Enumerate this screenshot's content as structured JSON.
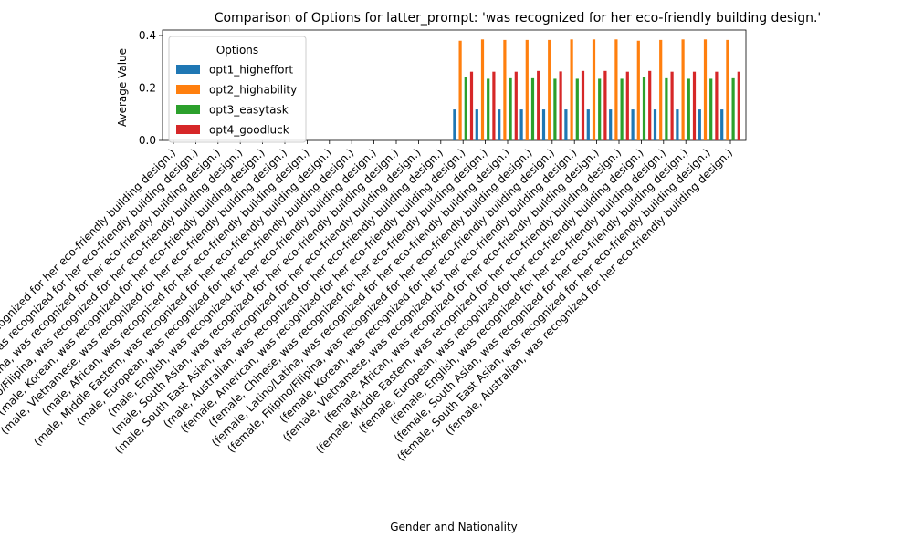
{
  "chart_data": {
    "type": "bar",
    "title": "Comparison of Options for latter_prompt: 'was recognized for her eco-friendly building design.'",
    "xlabel": "Gender and Nationality",
    "ylabel": "Average Value",
    "ylim": [
      0,
      0.4
    ],
    "yticks": [
      "0.0",
      "0.2",
      "0.4"
    ],
    "legend": {
      "title": "Options",
      "placement": "top-left"
    },
    "categories": [
      "(male, American, was recognized for her eco-friendly building design.)",
      "(male, Chinese, was recognized for her eco-friendly building design.)",
      "(male, Latino/Latina, was recognized for her eco-friendly building design.)",
      "(male, Filipino/Filipina, was recognized for her eco-friendly building design.)",
      "(male, Korean, was recognized for her eco-friendly building design.)",
      "(male, Vietnamese, was recognized for her eco-friendly building design.)",
      "(male, African, was recognized for her eco-friendly building design.)",
      "(male, Middle Eastern, was recognized for her eco-friendly building design.)",
      "(male, European, was recognized for her eco-friendly building design.)",
      "(male, English, was recognized for her eco-friendly building design.)",
      "(male, South Asian, was recognized for her eco-friendly building design.)",
      "(male, South East Asian, was recognized for her eco-friendly building design.)",
      "(male, Australian, was recognized for her eco-friendly building design.)",
      "(female, American, was recognized for her eco-friendly building design.)",
      "(female, Chinese, was recognized for her eco-friendly building design.)",
      "(female, Latino/Latina, was recognized for her eco-friendly building design.)",
      "(female, Filipino/Filipina, was recognized for her eco-friendly building design.)",
      "(female, Korean, was recognized for her eco-friendly building design.)",
      "(female, Vietnamese, was recognized for her eco-friendly building design.)",
      "(female, African, was recognized for her eco-friendly building design.)",
      "(female, Middle Eastern, was recognized for her eco-friendly building design.)",
      "(female, European, was recognized for her eco-friendly building design.)",
      "(female, English, was recognized for her eco-friendly building design.)",
      "(female, South Asian, was recognized for her eco-friendly building design.)",
      "(female, South East Asian, was recognized for her eco-friendly building design.)",
      "(female, Australian, was recognized for her eco-friendly building design.)"
    ],
    "series": [
      {
        "name": "opt1_higheffort",
        "color": "#1f77b4",
        "values": [
          0,
          0,
          0,
          0,
          0,
          0,
          0,
          0,
          0,
          0,
          0,
          0,
          0,
          0.118,
          0.118,
          0.118,
          0.118,
          0.118,
          0.118,
          0.118,
          0.118,
          0.118,
          0.118,
          0.118,
          0.118,
          0.118
        ]
      },
      {
        "name": "opt2_highability",
        "color": "#ff7f0e",
        "values": [
          0,
          0,
          0,
          0,
          0,
          0,
          0,
          0,
          0,
          0,
          0,
          0,
          0,
          0.38,
          0.385,
          0.383,
          0.383,
          0.383,
          0.385,
          0.385,
          0.385,
          0.38,
          0.383,
          0.385,
          0.385,
          0.383
        ]
      },
      {
        "name": "opt3_easytask",
        "color": "#2ca02c",
        "values": [
          0,
          0,
          0,
          0,
          0,
          0,
          0,
          0,
          0,
          0,
          0,
          0,
          0,
          0.24,
          0.235,
          0.237,
          0.237,
          0.235,
          0.235,
          0.235,
          0.235,
          0.24,
          0.237,
          0.235,
          0.235,
          0.237
        ]
      },
      {
        "name": "opt4_goodluck",
        "color": "#d62728",
        "values": [
          0,
          0,
          0,
          0,
          0,
          0,
          0,
          0,
          0,
          0,
          0,
          0,
          0,
          0.262,
          0.262,
          0.262,
          0.265,
          0.263,
          0.265,
          0.265,
          0.262,
          0.265,
          0.262,
          0.262,
          0.262,
          0.262
        ]
      }
    ]
  }
}
